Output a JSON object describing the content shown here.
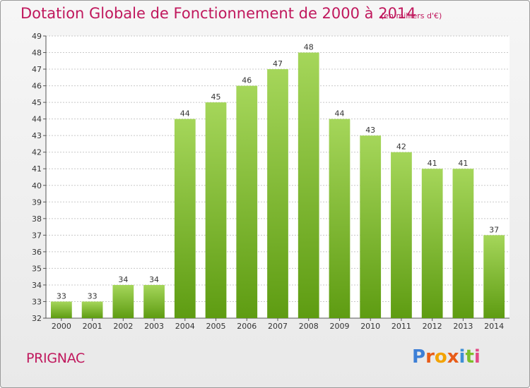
{
  "header": {
    "title": "Dotation Globale de Fonctionnement de 2000 à 2014",
    "unit": "(en milliers d'€)"
  },
  "footer": {
    "commune": "PRIGNAC",
    "logo_letters": [
      "P",
      "r",
      "o",
      "x",
      "i",
      "t",
      "i"
    ]
  },
  "colors": {
    "title": "#c0185d",
    "bar_top": "#a5d65a",
    "bar_bottom": "#5e9c12",
    "grid": "#c8c8c8"
  },
  "chart_data": {
    "type": "bar",
    "title": "Dotation Globale de Fonctionnement de 2000 à 2014",
    "subtitle": "(en milliers d'€)",
    "categories": [
      "2000",
      "2001",
      "2002",
      "2003",
      "2004",
      "2005",
      "2006",
      "2007",
      "2008",
      "2009",
      "2010",
      "2011",
      "2012",
      "2013",
      "2014"
    ],
    "values": [
      33,
      33,
      34,
      34,
      44,
      45,
      46,
      47,
      48,
      44,
      43,
      42,
      41,
      41,
      37
    ],
    "ylim": [
      32,
      49
    ],
    "yticks": [
      32,
      33,
      34,
      35,
      36,
      37,
      38,
      39,
      40,
      41,
      42,
      43,
      44,
      45,
      46,
      47,
      48,
      49
    ],
    "grid": true,
    "legend": "none",
    "data_labels": true
  }
}
